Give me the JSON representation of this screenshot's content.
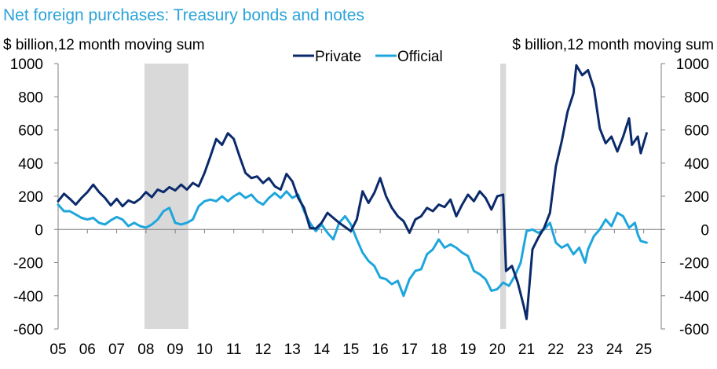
{
  "chart_data": {
    "type": "line",
    "title": "Net foreign purchases: Treasury bonds and notes",
    "ylabel_left": "$ billion,12 month moving sum",
    "ylabel_right": "$ billion,12 month moving sum",
    "ylim": [
      -600,
      1000
    ],
    "yticks": [
      -600,
      -400,
      -200,
      0,
      200,
      400,
      600,
      800,
      1000
    ],
    "ytick_labels": [
      "-600",
      "-400",
      "-200",
      "0",
      "200",
      "400",
      "600",
      "800",
      "1000"
    ],
    "xlim": [
      2005,
      2025.6
    ],
    "xticks": [
      2005,
      2006,
      2007,
      2008,
      2009,
      2010,
      2011,
      2012,
      2013,
      2014,
      2015,
      2016,
      2017,
      2018,
      2019,
      2020,
      2021,
      2022,
      2023,
      2024,
      2025
    ],
    "xtick_labels": [
      "05",
      "06",
      "07",
      "08",
      "09",
      "10",
      "11",
      "12",
      "13",
      "14",
      "15",
      "16",
      "17",
      "18",
      "19",
      "20",
      "21",
      "22",
      "23",
      "24",
      "25"
    ],
    "legend_position": "top-center",
    "recessions": [
      [
        2007.95,
        2009.45
      ],
      [
        2020.1,
        2020.3
      ]
    ],
    "series": [
      {
        "name": "Private",
        "color": "#0b2a6b",
        "points": [
          [
            2005.0,
            170
          ],
          [
            2005.2,
            215
          ],
          [
            2005.4,
            185
          ],
          [
            2005.6,
            150
          ],
          [
            2005.8,
            190
          ],
          [
            2006.0,
            225
          ],
          [
            2006.2,
            270
          ],
          [
            2006.4,
            225
          ],
          [
            2006.6,
            190
          ],
          [
            2006.8,
            145
          ],
          [
            2007.0,
            185
          ],
          [
            2007.2,
            140
          ],
          [
            2007.4,
            175
          ],
          [
            2007.6,
            160
          ],
          [
            2007.8,
            185
          ],
          [
            2008.0,
            225
          ],
          [
            2008.2,
            195
          ],
          [
            2008.4,
            240
          ],
          [
            2008.6,
            225
          ],
          [
            2008.8,
            255
          ],
          [
            2009.0,
            235
          ],
          [
            2009.2,
            270
          ],
          [
            2009.4,
            240
          ],
          [
            2009.6,
            280
          ],
          [
            2009.8,
            260
          ],
          [
            2010.0,
            340
          ],
          [
            2010.2,
            440
          ],
          [
            2010.4,
            545
          ],
          [
            2010.6,
            510
          ],
          [
            2010.8,
            580
          ],
          [
            2011.0,
            545
          ],
          [
            2011.2,
            440
          ],
          [
            2011.4,
            340
          ],
          [
            2011.6,
            310
          ],
          [
            2011.8,
            320
          ],
          [
            2012.0,
            280
          ],
          [
            2012.2,
            310
          ],
          [
            2012.4,
            260
          ],
          [
            2012.6,
            240
          ],
          [
            2012.8,
            335
          ],
          [
            2013.0,
            290
          ],
          [
            2013.2,
            190
          ],
          [
            2013.4,
            130
          ],
          [
            2013.6,
            10
          ],
          [
            2013.8,
            5
          ],
          [
            2014.0,
            40
          ],
          [
            2014.2,
            100
          ],
          [
            2014.4,
            70
          ],
          [
            2014.6,
            40
          ],
          [
            2014.8,
            15
          ],
          [
            2015.0,
            -10
          ],
          [
            2015.2,
            60
          ],
          [
            2015.4,
            230
          ],
          [
            2015.6,
            160
          ],
          [
            2015.8,
            220
          ],
          [
            2016.0,
            310
          ],
          [
            2016.2,
            200
          ],
          [
            2016.4,
            130
          ],
          [
            2016.6,
            80
          ],
          [
            2016.8,
            50
          ],
          [
            2017.0,
            -20
          ],
          [
            2017.2,
            60
          ],
          [
            2017.4,
            80
          ],
          [
            2017.6,
            130
          ],
          [
            2017.8,
            110
          ],
          [
            2018.0,
            150
          ],
          [
            2018.2,
            135
          ],
          [
            2018.4,
            180
          ],
          [
            2018.6,
            80
          ],
          [
            2018.8,
            150
          ],
          [
            2019.0,
            210
          ],
          [
            2019.2,
            170
          ],
          [
            2019.4,
            230
          ],
          [
            2019.6,
            190
          ],
          [
            2019.8,
            120
          ],
          [
            2020.0,
            200
          ],
          [
            2020.2,
            210
          ],
          [
            2020.3,
            -250
          ],
          [
            2020.5,
            -220
          ],
          [
            2020.7,
            -320
          ],
          [
            2020.9,
            -460
          ],
          [
            2021.0,
            -540
          ],
          [
            2021.2,
            -120
          ],
          [
            2021.4,
            -50
          ],
          [
            2021.6,
            10
          ],
          [
            2021.8,
            100
          ],
          [
            2022.0,
            380
          ],
          [
            2022.2,
            530
          ],
          [
            2022.4,
            710
          ],
          [
            2022.6,
            820
          ],
          [
            2022.7,
            990
          ],
          [
            2022.9,
            930
          ],
          [
            2023.1,
            960
          ],
          [
            2023.3,
            850
          ],
          [
            2023.5,
            610
          ],
          [
            2023.7,
            520
          ],
          [
            2023.9,
            560
          ],
          [
            2024.1,
            470
          ],
          [
            2024.3,
            560
          ],
          [
            2024.5,
            670
          ],
          [
            2024.6,
            510
          ],
          [
            2024.8,
            560
          ],
          [
            2024.9,
            460
          ],
          [
            2025.1,
            580
          ]
        ]
      },
      {
        "name": "Official",
        "color": "#1ea6dc",
        "points": [
          [
            2005.0,
            150
          ],
          [
            2005.2,
            110
          ],
          [
            2005.4,
            110
          ],
          [
            2005.6,
            90
          ],
          [
            2005.8,
            70
          ],
          [
            2006.0,
            60
          ],
          [
            2006.2,
            70
          ],
          [
            2006.4,
            40
          ],
          [
            2006.6,
            30
          ],
          [
            2006.8,
            55
          ],
          [
            2007.0,
            75
          ],
          [
            2007.2,
            60
          ],
          [
            2007.4,
            20
          ],
          [
            2007.6,
            40
          ],
          [
            2007.8,
            20
          ],
          [
            2008.0,
            10
          ],
          [
            2008.2,
            30
          ],
          [
            2008.4,
            60
          ],
          [
            2008.6,
            110
          ],
          [
            2008.8,
            130
          ],
          [
            2009.0,
            40
          ],
          [
            2009.2,
            30
          ],
          [
            2009.4,
            40
          ],
          [
            2009.6,
            60
          ],
          [
            2009.8,
            140
          ],
          [
            2010.0,
            170
          ],
          [
            2010.2,
            180
          ],
          [
            2010.4,
            170
          ],
          [
            2010.6,
            200
          ],
          [
            2010.8,
            170
          ],
          [
            2011.0,
            200
          ],
          [
            2011.2,
            220
          ],
          [
            2011.4,
            190
          ],
          [
            2011.6,
            210
          ],
          [
            2011.8,
            170
          ],
          [
            2012.0,
            150
          ],
          [
            2012.2,
            190
          ],
          [
            2012.4,
            220
          ],
          [
            2012.6,
            190
          ],
          [
            2012.8,
            230
          ],
          [
            2013.0,
            190
          ],
          [
            2013.2,
            210
          ],
          [
            2013.4,
            110
          ],
          [
            2013.6,
            40
          ],
          [
            2013.8,
            -10
          ],
          [
            2014.0,
            30
          ],
          [
            2014.2,
            -20
          ],
          [
            2014.4,
            -60
          ],
          [
            2014.6,
            40
          ],
          [
            2014.8,
            80
          ],
          [
            2015.0,
            30
          ],
          [
            2015.2,
            -60
          ],
          [
            2015.4,
            -140
          ],
          [
            2015.6,
            -190
          ],
          [
            2015.8,
            -220
          ],
          [
            2016.0,
            -290
          ],
          [
            2016.2,
            -300
          ],
          [
            2016.4,
            -330
          ],
          [
            2016.6,
            -310
          ],
          [
            2016.8,
            -400
          ],
          [
            2017.0,
            -300
          ],
          [
            2017.2,
            -250
          ],
          [
            2017.4,
            -240
          ],
          [
            2017.6,
            -150
          ],
          [
            2017.8,
            -120
          ],
          [
            2018.0,
            -60
          ],
          [
            2018.2,
            -110
          ],
          [
            2018.4,
            -90
          ],
          [
            2018.6,
            -110
          ],
          [
            2018.8,
            -140
          ],
          [
            2019.0,
            -160
          ],
          [
            2019.2,
            -250
          ],
          [
            2019.4,
            -270
          ],
          [
            2019.6,
            -300
          ],
          [
            2019.8,
            -370
          ],
          [
            2020.0,
            -360
          ],
          [
            2020.2,
            -320
          ],
          [
            2020.4,
            -340
          ],
          [
            2020.6,
            -280
          ],
          [
            2020.8,
            -200
          ],
          [
            2021.0,
            -10
          ],
          [
            2021.2,
            0
          ],
          [
            2021.4,
            -20
          ],
          [
            2021.6,
            0
          ],
          [
            2021.8,
            40
          ],
          [
            2022.0,
            -80
          ],
          [
            2022.2,
            -110
          ],
          [
            2022.4,
            -90
          ],
          [
            2022.6,
            -150
          ],
          [
            2022.8,
            -110
          ],
          [
            2023.0,
            -200
          ],
          [
            2023.1,
            -120
          ],
          [
            2023.3,
            -40
          ],
          [
            2023.5,
            0
          ],
          [
            2023.7,
            60
          ],
          [
            2023.9,
            20
          ],
          [
            2024.1,
            100
          ],
          [
            2024.3,
            80
          ],
          [
            2024.5,
            10
          ],
          [
            2024.7,
            40
          ],
          [
            2024.8,
            -30
          ],
          [
            2024.9,
            -70
          ],
          [
            2025.1,
            -80
          ]
        ]
      }
    ]
  }
}
